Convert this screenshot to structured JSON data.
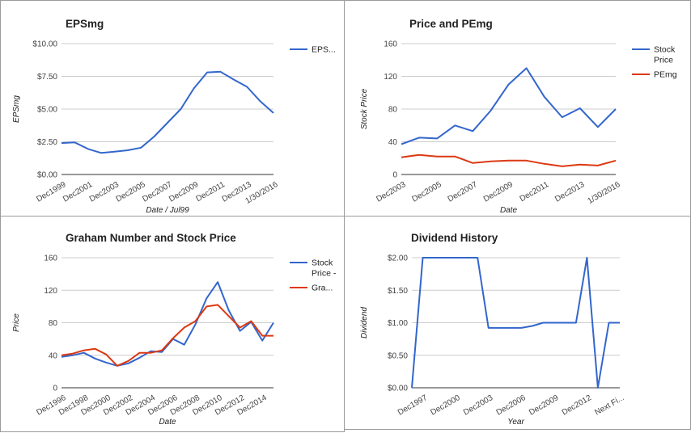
{
  "chart_data": [
    {
      "type": "line",
      "title": "EPSmg",
      "xlabel": "Date / Jul99",
      "ylabel": "EPSmg",
      "categories": [
        "Dec1999",
        "Dec2000",
        "Dec2001",
        "Dec2002",
        "Dec2003",
        "Dec2004",
        "Dec2005",
        "Dec2006",
        "Dec2007",
        "Dec2008",
        "Dec2009",
        "Dec2010",
        "Dec2011",
        "Dec2012",
        "Dec2013",
        "Dec2014",
        "1/30/2016"
      ],
      "x_tick_labels": [
        "Dec1999",
        "Dec2001",
        "Dec2003",
        "Dec2005",
        "Dec2007",
        "Dec2009",
        "Dec2011",
        "Dec2013",
        "1/30/2016"
      ],
      "y_tick_labels": [
        "$0.00",
        "$2.50",
        "$5.00",
        "$7.50",
        "$10.00"
      ],
      "ylim": [
        0,
        10
      ],
      "yticks": [
        0,
        2.5,
        5,
        7.5,
        10
      ],
      "series": [
        {
          "name": "EPS...",
          "color": "#3366cc",
          "values": [
            2.4,
            2.45,
            1.95,
            1.65,
            1.75,
            1.85,
            2.05,
            2.9,
            3.95,
            5.0,
            6.6,
            7.8,
            7.85,
            7.25,
            6.7,
            5.6,
            4.7
          ]
        }
      ],
      "legend": "right",
      "grid": true
    },
    {
      "type": "line",
      "title": "Price and PEmg",
      "xlabel": "Date",
      "ylabel": "Stock Price",
      "categories": [
        "Dec2003",
        "Dec2004",
        "Dec2005",
        "Dec2006",
        "Dec2007",
        "Dec2008",
        "Dec2009",
        "Dec2010",
        "Dec2011",
        "Dec2012",
        "Dec2013",
        "Dec2014",
        "1/30/2016"
      ],
      "x_tick_labels": [
        "Dec2003",
        "Dec2005",
        "Dec2007",
        "Dec2009",
        "Dec2011",
        "Dec2013",
        "1/30/2016"
      ],
      "y_tick_labels": [
        "0",
        "40",
        "80",
        "120",
        "160"
      ],
      "ylim": [
        0,
        160
      ],
      "yticks": [
        0,
        40,
        80,
        120,
        160
      ],
      "series": [
        {
          "name": "Stock Price",
          "color": "#3366cc",
          "values": [
            37,
            45,
            44,
            60,
            53,
            78,
            110,
            130,
            95,
            70,
            81,
            58,
            80
          ]
        },
        {
          "name": "PEmg",
          "color": "#dc3912",
          "values": [
            21,
            24,
            22,
            22,
            14,
            16,
            17,
            17,
            13,
            10,
            12,
            11,
            17
          ]
        }
      ],
      "legend": "right",
      "grid": true
    },
    {
      "type": "line",
      "title": "Graham Number and Stock Price",
      "xlabel": "Date",
      "ylabel": "Price",
      "categories": [
        "Dec1996",
        "Dec1997",
        "Dec1998",
        "Dec1999",
        "Dec2000",
        "Dec2001",
        "Dec2002",
        "Dec2003",
        "Dec2004",
        "Dec2005",
        "Dec2006",
        "Dec2007",
        "Dec2008",
        "Dec2009",
        "Dec2010",
        "Dec2011",
        "Dec2012",
        "Dec2013",
        "Dec2014",
        "Dec2015"
      ],
      "x_tick_labels": [
        "Dec1996",
        "Dec1998",
        "Dec2000",
        "Dec2002",
        "Dec2004",
        "Dec2006",
        "Dec2008",
        "Dec2010",
        "Dec2012",
        "Dec2014"
      ],
      "y_tick_labels": [
        "0",
        "40",
        "80",
        "120",
        "160"
      ],
      "ylim": [
        0,
        160
      ],
      "yticks": [
        0,
        40,
        80,
        120,
        160
      ],
      "series": [
        {
          "name": "Stock Price -",
          "color": "#3366cc",
          "values": [
            38,
            40,
            43,
            36,
            31,
            27,
            30,
            37,
            45,
            44,
            60,
            53,
            78,
            110,
            130,
            95,
            70,
            81,
            58,
            80
          ]
        },
        {
          "name": "Gra...",
          "color": "#dc3912",
          "values": [
            40,
            42,
            46,
            48,
            41,
            27,
            33,
            43,
            43,
            46,
            61,
            74,
            82,
            100,
            102,
            88,
            74,
            82,
            64,
            64
          ]
        }
      ],
      "legend": "right",
      "grid": true
    },
    {
      "type": "line",
      "title": "Dividend History",
      "xlabel": "Year",
      "ylabel": "Dividend",
      "categories": [
        "Dec1996",
        "Dec1997",
        "Dec1998",
        "Dec1999",
        "Dec2000",
        "Dec2001",
        "Dec2002",
        "Dec2003",
        "Dec2004",
        "Dec2005",
        "Dec2006",
        "Dec2007",
        "Dec2008",
        "Dec2009",
        "Dec2010",
        "Dec2011",
        "Dec2012",
        "Dec2013",
        "Dec2014",
        "Next Fiscal Year"
      ],
      "x_tick_labels": [
        "Dec1997",
        "Dec2000",
        "Dec2003",
        "Dec2006",
        "Dec2009",
        "Dec2012",
        "Next Fi..."
      ],
      "y_tick_labels": [
        "$0.00",
        "$0.50",
        "$1.00",
        "$1.50",
        "$2.00"
      ],
      "ylim": [
        0,
        2
      ],
      "yticks": [
        0,
        0.5,
        1,
        1.5,
        2
      ],
      "series": [
        {
          "name": "Dividend",
          "color": "#3366cc",
          "values": [
            0,
            2,
            2,
            2,
            2,
            2,
            2,
            0.92,
            0.92,
            0.92,
            0.92,
            0.95,
            1,
            1,
            1,
            1,
            2,
            0,
            1,
            1
          ]
        }
      ],
      "legend": "none",
      "grid": true
    }
  ]
}
